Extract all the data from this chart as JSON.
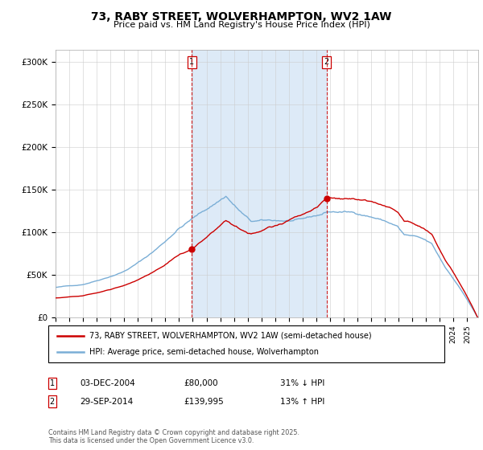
{
  "title": "73, RABY STREET, WOLVERHAMPTON, WV2 1AW",
  "subtitle": "Price paid vs. HM Land Registry's House Price Index (HPI)",
  "ylabel_ticks": [
    "£0",
    "£50K",
    "£100K",
    "£150K",
    "£200K",
    "£250K",
    "£300K"
  ],
  "ytick_values": [
    0,
    50000,
    100000,
    150000,
    200000,
    250000,
    300000
  ],
  "ylim": [
    0,
    315000
  ],
  "xlim_start": 1995.0,
  "xlim_end": 2025.8,
  "sale1_date": 2004.92,
  "sale1_price": 80000,
  "sale2_date": 2014.75,
  "sale2_price": 139995,
  "legend_line1": "73, RABY STREET, WOLVERHAMPTON, WV2 1AW (semi-detached house)",
  "legend_line2": "HPI: Average price, semi-detached house, Wolverhampton",
  "annotation1_label": "1",
  "annotation1_date": "03-DEC-2004",
  "annotation1_price": "£80,000",
  "annotation1_hpi": "31% ↓ HPI",
  "annotation2_label": "2",
  "annotation2_date": "29-SEP-2014",
  "annotation2_price": "£139,995",
  "annotation2_hpi": "13% ↑ HPI",
  "footnote": "Contains HM Land Registry data © Crown copyright and database right 2025.\nThis data is licensed under the Open Government Licence v3.0.",
  "red_color": "#cc0000",
  "blue_color": "#7aaed6",
  "shade_color": "#ddeaf7",
  "background_color": "#ffffff"
}
